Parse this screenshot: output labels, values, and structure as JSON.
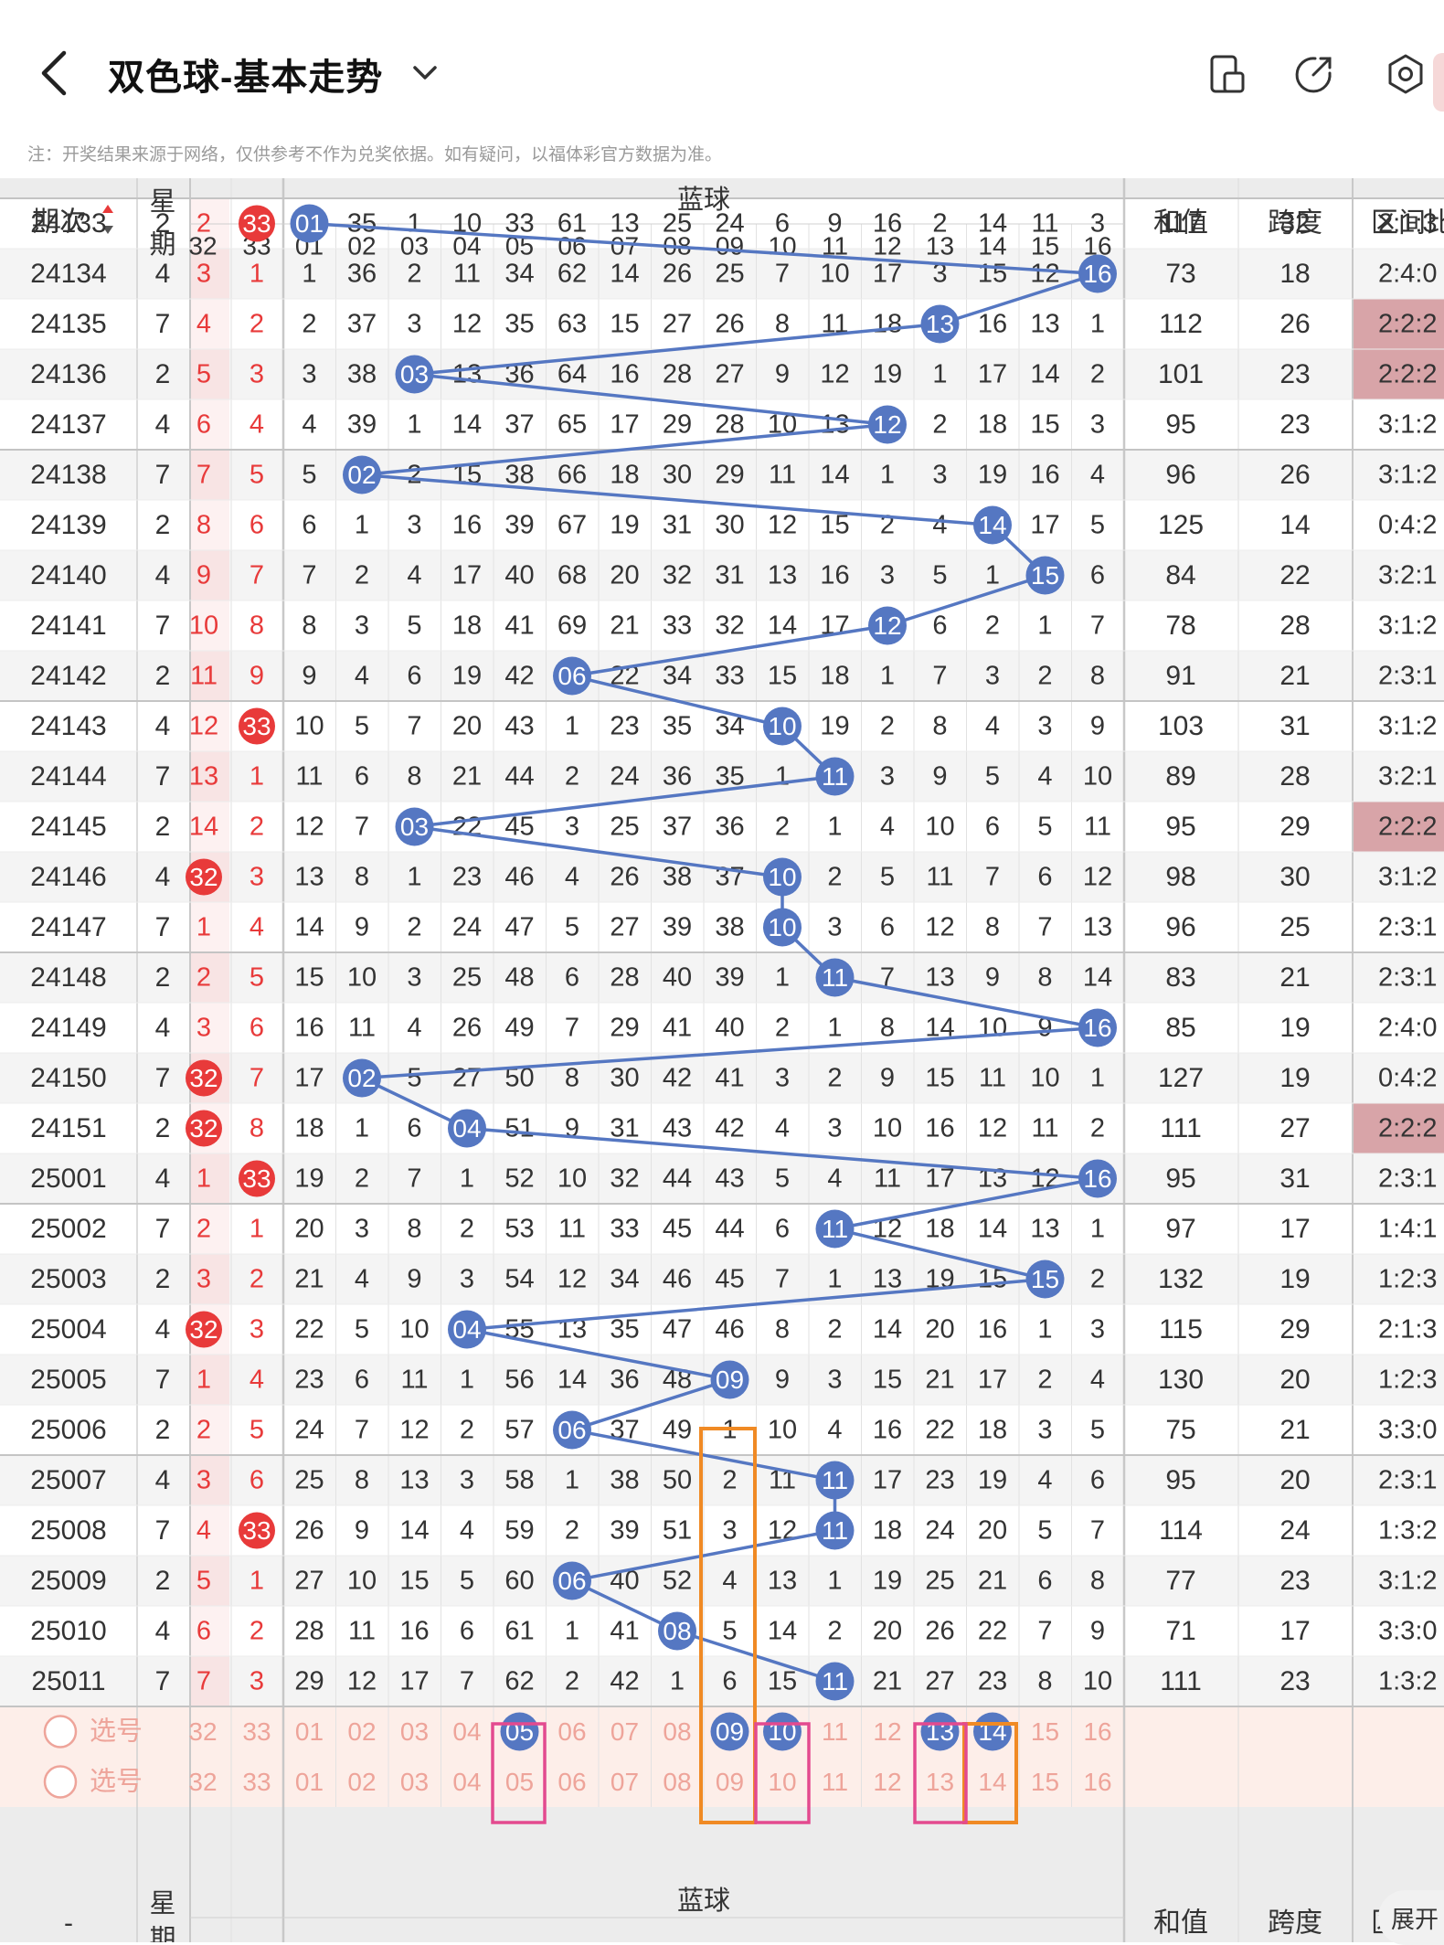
{
  "header": {
    "title": "双色球-基本走势",
    "icons": [
      "back-icon",
      "chevron-down-icon",
      "phone-layout-icon",
      "share-icon",
      "settings-icon"
    ]
  },
  "note": "注：开奖结果来源于网络，仅供参考不作为兑奖依据。如有疑问，以福体彩官方数据为准。",
  "columns": {
    "issue": "期次",
    "week_top": "星",
    "week_bottom": "期",
    "blue_group": "蓝球",
    "sum": "和值",
    "span": "跨度",
    "ratio": "区间比",
    "red_partial": [
      "32",
      "33"
    ],
    "blue_numbers": [
      "01",
      "02",
      "03",
      "04",
      "05",
      "06",
      "07",
      "08",
      "09",
      "10",
      "11",
      "12",
      "13",
      "14",
      "15",
      "16"
    ]
  },
  "colors": {
    "red": "#e83a3a",
    "blue_ball": "#5577c2",
    "orange_box": "#f08a24",
    "pink_box": "#e34a8f",
    "ratio_highlight": "#d8a4a8",
    "select_row_bg": "#fdeee9",
    "select_text": "#eea49a"
  },
  "rows": [
    {
      "issue": "24133",
      "week": "2",
      "r32": "2",
      "r33": "33",
      "r33hit": true,
      "blue": 1,
      "cells": [
        null,
        "35",
        "1",
        "10",
        "33",
        "61",
        "13",
        "25",
        "24",
        "6",
        "9",
        "16",
        "2",
        "14",
        "11",
        "3"
      ],
      "sum": "117",
      "span": "32",
      "ratio": "2:1:3",
      "hl": false
    },
    {
      "issue": "24134",
      "week": "4",
      "r32": "3",
      "r33": "1",
      "blue": 16,
      "cells": [
        "1",
        "36",
        "2",
        "11",
        "34",
        "62",
        "14",
        "26",
        "25",
        "7",
        "10",
        "17",
        "3",
        "15",
        "12",
        null
      ],
      "sum": "73",
      "span": "18",
      "ratio": "2:4:0",
      "hl": false
    },
    {
      "issue": "24135",
      "week": "7",
      "r32": "4",
      "r33": "2",
      "blue": 13,
      "cells": [
        "2",
        "37",
        "3",
        "12",
        "35",
        "63",
        "15",
        "27",
        "26",
        "8",
        "11",
        "18",
        null,
        "16",
        "13",
        "1"
      ],
      "sum": "112",
      "span": "26",
      "ratio": "2:2:2",
      "hl": true
    },
    {
      "issue": "24136",
      "week": "2",
      "r32": "5",
      "r33": "3",
      "blue": 3,
      "cells": [
        "3",
        "38",
        null,
        "13",
        "36",
        "64",
        "16",
        "28",
        "27",
        "9",
        "12",
        "19",
        "1",
        "17",
        "14",
        "2"
      ],
      "sum": "101",
      "span": "23",
      "ratio": "2:2:2",
      "hl": true
    },
    {
      "issue": "24137",
      "week": "4",
      "r32": "6",
      "r33": "4",
      "blue": 12,
      "cells": [
        "4",
        "39",
        "1",
        "14",
        "37",
        "65",
        "17",
        "29",
        "28",
        "10",
        "13",
        null,
        "2",
        "18",
        "15",
        "3"
      ],
      "sum": "95",
      "span": "23",
      "ratio": "3:1:2",
      "hl": false
    },
    {
      "issue": "24138",
      "week": "7",
      "r32": "7",
      "r33": "5",
      "blue": 2,
      "cells": [
        "5",
        null,
        "2",
        "15",
        "38",
        "66",
        "18",
        "30",
        "29",
        "11",
        "14",
        "1",
        "3",
        "19",
        "16",
        "4"
      ],
      "sum": "96",
      "span": "26",
      "ratio": "3:1:2",
      "hl": false
    },
    {
      "issue": "24139",
      "week": "2",
      "r32": "8",
      "r33": "6",
      "blue": 14,
      "cells": [
        "6",
        "1",
        "3",
        "16",
        "39",
        "67",
        "19",
        "31",
        "30",
        "12",
        "15",
        "2",
        "4",
        null,
        "17",
        "5"
      ],
      "sum": "125",
      "span": "14",
      "ratio": "0:4:2",
      "hl": false
    },
    {
      "issue": "24140",
      "week": "4",
      "r32": "9",
      "r33": "7",
      "blue": 15,
      "cells": [
        "7",
        "2",
        "4",
        "17",
        "40",
        "68",
        "20",
        "32",
        "31",
        "13",
        "16",
        "3",
        "5",
        "1",
        null,
        "6"
      ],
      "sum": "84",
      "span": "22",
      "ratio": "3:2:1",
      "hl": false
    },
    {
      "issue": "24141",
      "week": "7",
      "r32": "10",
      "r33": "8",
      "blue": 12,
      "cells": [
        "8",
        "3",
        "5",
        "18",
        "41",
        "69",
        "21",
        "33",
        "32",
        "14",
        "17",
        null,
        "6",
        "2",
        "1",
        "7"
      ],
      "sum": "78",
      "span": "28",
      "ratio": "3:1:2",
      "hl": false
    },
    {
      "issue": "24142",
      "week": "2",
      "r32": "11",
      "r33": "9",
      "blue": 6,
      "cells": [
        "9",
        "4",
        "6",
        "19",
        "42",
        null,
        "22",
        "34",
        "33",
        "15",
        "18",
        "1",
        "7",
        "3",
        "2",
        "8"
      ],
      "sum": "91",
      "span": "21",
      "ratio": "2:3:1",
      "hl": false
    },
    {
      "issue": "24143",
      "week": "4",
      "r32": "12",
      "r33": "33",
      "r33hit": true,
      "blue": 10,
      "cells": [
        "10",
        "5",
        "7",
        "20",
        "43",
        "1",
        "23",
        "35",
        "34",
        null,
        "19",
        "2",
        "8",
        "4",
        "3",
        "9"
      ],
      "sum": "103",
      "span": "31",
      "ratio": "3:1:2",
      "hl": false
    },
    {
      "issue": "24144",
      "week": "7",
      "r32": "13",
      "r33": "1",
      "blue": 11,
      "cells": [
        "11",
        "6",
        "8",
        "21",
        "44",
        "2",
        "24",
        "36",
        "35",
        "1",
        null,
        "3",
        "9",
        "5",
        "4",
        "10"
      ],
      "sum": "89",
      "span": "28",
      "ratio": "3:2:1",
      "hl": false
    },
    {
      "issue": "24145",
      "week": "2",
      "r32": "14",
      "r33": "2",
      "blue": 3,
      "cells": [
        "12",
        "7",
        null,
        "22",
        "45",
        "3",
        "25",
        "37",
        "36",
        "2",
        "1",
        "4",
        "10",
        "6",
        "5",
        "11"
      ],
      "sum": "95",
      "span": "29",
      "ratio": "2:2:2",
      "hl": true
    },
    {
      "issue": "24146",
      "week": "4",
      "r32": "32",
      "r32hit": true,
      "r33": "3",
      "blue": 10,
      "cells": [
        "13",
        "8",
        "1",
        "23",
        "46",
        "4",
        "26",
        "38",
        "37",
        null,
        "2",
        "5",
        "11",
        "7",
        "6",
        "12"
      ],
      "sum": "98",
      "span": "30",
      "ratio": "3:1:2",
      "hl": false
    },
    {
      "issue": "24147",
      "week": "7",
      "r32": "1",
      "r33": "4",
      "blue": 10,
      "cells": [
        "14",
        "9",
        "2",
        "24",
        "47",
        "5",
        "27",
        "39",
        "38",
        null,
        "3",
        "6",
        "12",
        "8",
        "7",
        "13"
      ],
      "sum": "96",
      "span": "25",
      "ratio": "2:3:1",
      "hl": false
    },
    {
      "issue": "24148",
      "week": "2",
      "r32": "2",
      "r33": "5",
      "blue": 11,
      "cells": [
        "15",
        "10",
        "3",
        "25",
        "48",
        "6",
        "28",
        "40",
        "39",
        "1",
        null,
        "7",
        "13",
        "9",
        "8",
        "14"
      ],
      "sum": "83",
      "span": "21",
      "ratio": "2:3:1",
      "hl": false
    },
    {
      "issue": "24149",
      "week": "4",
      "r32": "3",
      "r33": "6",
      "blue": 16,
      "cells": [
        "16",
        "11",
        "4",
        "26",
        "49",
        "7",
        "29",
        "41",
        "40",
        "2",
        "1",
        "8",
        "14",
        "10",
        "9",
        null
      ],
      "sum": "85",
      "span": "19",
      "ratio": "2:4:0",
      "hl": false
    },
    {
      "issue": "24150",
      "week": "7",
      "r32": "32",
      "r32hit": true,
      "r33": "7",
      "blue": 2,
      "cells": [
        "17",
        null,
        "5",
        "27",
        "50",
        "8",
        "30",
        "42",
        "41",
        "3",
        "2",
        "9",
        "15",
        "11",
        "10",
        "1"
      ],
      "sum": "127",
      "span": "19",
      "ratio": "0:4:2",
      "hl": false
    },
    {
      "issue": "24151",
      "week": "2",
      "r32": "32",
      "r32hit": true,
      "r33": "8",
      "blue": 4,
      "cells": [
        "18",
        "1",
        "6",
        null,
        "51",
        "9",
        "31",
        "43",
        "42",
        "4",
        "3",
        "10",
        "16",
        "12",
        "11",
        "2"
      ],
      "sum": "111",
      "span": "27",
      "ratio": "2:2:2",
      "hl": true
    },
    {
      "issue": "25001",
      "week": "4",
      "r32": "1",
      "r33": "33",
      "r33hit": true,
      "blue": 16,
      "cells": [
        "19",
        "2",
        "7",
        "1",
        "52",
        "10",
        "32",
        "44",
        "43",
        "5",
        "4",
        "11",
        "17",
        "13",
        "12",
        null
      ],
      "sum": "95",
      "span": "31",
      "ratio": "2:3:1",
      "hl": false
    },
    {
      "issue": "25002",
      "week": "7",
      "r32": "2",
      "r33": "1",
      "blue": 11,
      "cells": [
        "20",
        "3",
        "8",
        "2",
        "53",
        "11",
        "33",
        "45",
        "44",
        "6",
        null,
        "12",
        "18",
        "14",
        "13",
        "1"
      ],
      "sum": "97",
      "span": "17",
      "ratio": "1:4:1",
      "hl": false
    },
    {
      "issue": "25003",
      "week": "2",
      "r32": "3",
      "r33": "2",
      "blue": 15,
      "cells": [
        "21",
        "4",
        "9",
        "3",
        "54",
        "12",
        "34",
        "46",
        "45",
        "7",
        "1",
        "13",
        "19",
        "15",
        null,
        "2"
      ],
      "sum": "132",
      "span": "19",
      "ratio": "1:2:3",
      "hl": false
    },
    {
      "issue": "25004",
      "week": "4",
      "r32": "32",
      "r32hit": true,
      "r33": "3",
      "blue": 4,
      "cells": [
        "22",
        "5",
        "10",
        null,
        "55",
        "13",
        "35",
        "47",
        "46",
        "8",
        "2",
        "14",
        "20",
        "16",
        "1",
        "3"
      ],
      "sum": "115",
      "span": "29",
      "ratio": "2:1:3",
      "hl": false
    },
    {
      "issue": "25005",
      "week": "7",
      "r32": "1",
      "r33": "4",
      "blue": 9,
      "cells": [
        "23",
        "6",
        "11",
        "1",
        "56",
        "14",
        "36",
        "48",
        null,
        "9",
        "3",
        "15",
        "21",
        "17",
        "2",
        "4"
      ],
      "sum": "130",
      "span": "20",
      "ratio": "1:2:3",
      "hl": false
    },
    {
      "issue": "25006",
      "week": "2",
      "r32": "2",
      "r33": "5",
      "blue": 6,
      "cells": [
        "24",
        "7",
        "12",
        "2",
        "57",
        null,
        "37",
        "49",
        "1",
        "10",
        "4",
        "16",
        "22",
        "18",
        "3",
        "5"
      ],
      "sum": "75",
      "span": "21",
      "ratio": "3:3:0",
      "hl": false
    },
    {
      "issue": "25007",
      "week": "4",
      "r32": "3",
      "r33": "6",
      "blue": 11,
      "cells": [
        "25",
        "8",
        "13",
        "3",
        "58",
        "1",
        "38",
        "50",
        "2",
        "11",
        null,
        "17",
        "23",
        "19",
        "4",
        "6"
      ],
      "sum": "95",
      "span": "20",
      "ratio": "2:3:1",
      "hl": false
    },
    {
      "issue": "25008",
      "week": "7",
      "r32": "4",
      "r33": "33",
      "r33hit": true,
      "blue": 11,
      "cells": [
        "26",
        "9",
        "14",
        "4",
        "59",
        "2",
        "39",
        "51",
        "3",
        "12",
        null,
        "18",
        "24",
        "20",
        "5",
        "7"
      ],
      "sum": "114",
      "span": "24",
      "ratio": "1:3:2",
      "hl": false
    },
    {
      "issue": "25009",
      "week": "2",
      "r32": "5",
      "r33": "1",
      "blue": 6,
      "cells": [
        "27",
        "10",
        "15",
        "5",
        "60",
        null,
        "40",
        "52",
        "4",
        "13",
        "1",
        "19",
        "25",
        "21",
        "6",
        "8"
      ],
      "sum": "77",
      "span": "23",
      "ratio": "3:1:2",
      "hl": false
    },
    {
      "issue": "25010",
      "week": "4",
      "r32": "6",
      "r33": "2",
      "blue": 8,
      "cells": [
        "28",
        "11",
        "16",
        "6",
        "61",
        "1",
        "41",
        null,
        "5",
        "14",
        "2",
        "20",
        "26",
        "22",
        "7",
        "9"
      ],
      "sum": "71",
      "span": "17",
      "ratio": "3:3:0",
      "hl": false
    },
    {
      "issue": "25011",
      "week": "7",
      "r32": "7",
      "r33": "3",
      "blue": 11,
      "cells": [
        "29",
        "12",
        "17",
        "7",
        "62",
        "2",
        "42",
        "1",
        "6",
        "15",
        null,
        "21",
        "27",
        "23",
        "8",
        "10"
      ],
      "sum": "111",
      "span": "23",
      "ratio": "1:3:2",
      "hl": false
    }
  ],
  "select_rows": [
    {
      "label": "选号",
      "selected": [
        5,
        9,
        10,
        13,
        14
      ],
      "partial": [
        "32",
        "33"
      ]
    },
    {
      "label": "选号",
      "selected": [],
      "partial": [
        "32",
        "33"
      ]
    }
  ],
  "footer": {
    "issue": "-",
    "week": "星",
    "week_bottom": "期",
    "blue_group": "蓝球",
    "sum": "和值",
    "span": "跨度",
    "ratio": "区"
  },
  "fab_label": "展开"
}
